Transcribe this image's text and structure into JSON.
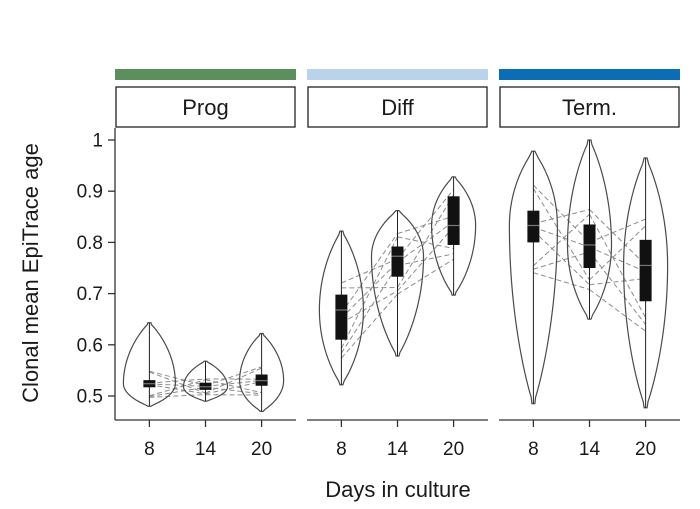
{
  "chart_data": {
    "type": "violin",
    "xlabel": "Days in culture",
    "ylabel": "Clonal mean EpiTrace age",
    "ylim": [
      0.47,
      1.02
    ],
    "yticks": [
      "0.5",
      "0.6",
      "0.7",
      "0.8",
      "0.9",
      "1"
    ],
    "xticks": [
      "8",
      "14",
      "20"
    ],
    "grid": false,
    "panels": [
      {
        "label": "Prog",
        "color": "#5b8f5b",
        "groups": [
          {
            "day": "8",
            "min": 0.48,
            "q1": 0.517,
            "median": 0.524,
            "q3": 0.531,
            "max": 0.643
          },
          {
            "day": "14",
            "min": 0.49,
            "q1": 0.512,
            "median": 0.518,
            "q3": 0.526,
            "max": 0.568
          },
          {
            "day": "20",
            "min": 0.47,
            "q1": 0.52,
            "median": 0.53,
            "q3": 0.542,
            "max": 0.622
          }
        ]
      },
      {
        "label": "Diff",
        "color": "#b9d3ea",
        "groups": [
          {
            "day": "8",
            "min": 0.522,
            "q1": 0.61,
            "median": 0.668,
            "q3": 0.698,
            "max": 0.822
          },
          {
            "day": "14",
            "min": 0.578,
            "q1": 0.733,
            "median": 0.773,
            "q3": 0.792,
            "max": 0.862
          },
          {
            "day": "20",
            "min": 0.697,
            "q1": 0.795,
            "median": 0.833,
            "q3": 0.89,
            "max": 0.928
          }
        ]
      },
      {
        "label": "Term.",
        "color": "#0b6db3",
        "groups": [
          {
            "day": "8",
            "min": 0.485,
            "q1": 0.8,
            "median": 0.833,
            "q3": 0.862,
            "max": 0.978
          },
          {
            "day": "14",
            "min": 0.65,
            "q1": 0.75,
            "median": 0.795,
            "q3": 0.835,
            "max": 1.0
          },
          {
            "day": "20",
            "min": 0.477,
            "q1": 0.685,
            "median": 0.755,
            "q3": 0.805,
            "max": 0.965
          }
        ]
      }
    ]
  }
}
